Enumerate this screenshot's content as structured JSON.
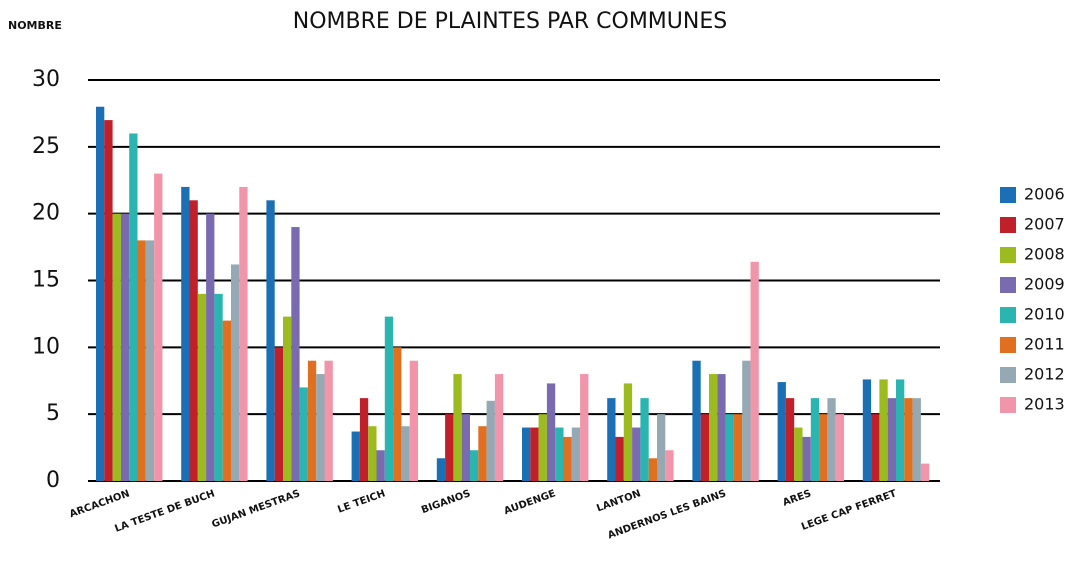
{
  "chart_data": {
    "type": "bar",
    "title": "NOMBRE DE PLAINTES PAR COMMUNES",
    "y_label": "NOMBRE",
    "categories": [
      "ARCACHON",
      "LA TESTE DE BUCH",
      "GUJAN MESTRAS",
      "LE TEICH",
      "BIGANOS",
      "AUDENGE",
      "LANTON",
      "ANDERNOS LES BAINS",
      "ARES",
      "LEGE CAP FERRET"
    ],
    "series": [
      {
        "name": "2006",
        "color": "#1a6fb5",
        "values": [
          28,
          22,
          21,
          3.7,
          1.7,
          4,
          6.2,
          9,
          7.4,
          7.6
        ]
      },
      {
        "name": "2007",
        "color": "#c0202a",
        "values": [
          27,
          21,
          10,
          6.2,
          5,
          4,
          3.3,
          5,
          6.2,
          5
        ]
      },
      {
        "name": "2008",
        "color": "#9bbb1e",
        "values": [
          20,
          14,
          12.3,
          4.1,
          8,
          5,
          7.3,
          8,
          4,
          7.6
        ]
      },
      {
        "name": "2009",
        "color": "#7a6bb0",
        "values": [
          20,
          20,
          19,
          2.3,
          5,
          7.3,
          4,
          8,
          3.3,
          6.2
        ]
      },
      {
        "name": "2010",
        "color": "#2ab5b0",
        "values": [
          26,
          14,
          7,
          12.3,
          2.3,
          4,
          6.2,
          5,
          6.2,
          7.6
        ]
      },
      {
        "name": "2011",
        "color": "#e07020",
        "values": [
          18,
          12,
          9,
          10,
          4.1,
          3.3,
          1.7,
          5,
          5,
          6.2
        ]
      },
      {
        "name": "2012",
        "color": "#94a9b3",
        "values": [
          18,
          16.2,
          8,
          4.1,
          6,
          4,
          5,
          9,
          6.2,
          6.2
        ]
      },
      {
        "name": "2013",
        "color": "#f195aa",
        "values": [
          23,
          22,
          9,
          9,
          8,
          8,
          2.3,
          16.4,
          5,
          1.3
        ]
      }
    ],
    "ylim": [
      0,
      30
    ],
    "yticks": [
      0,
      5,
      10,
      15,
      20,
      25,
      30
    ],
    "grid": true,
    "legend": "right"
  }
}
